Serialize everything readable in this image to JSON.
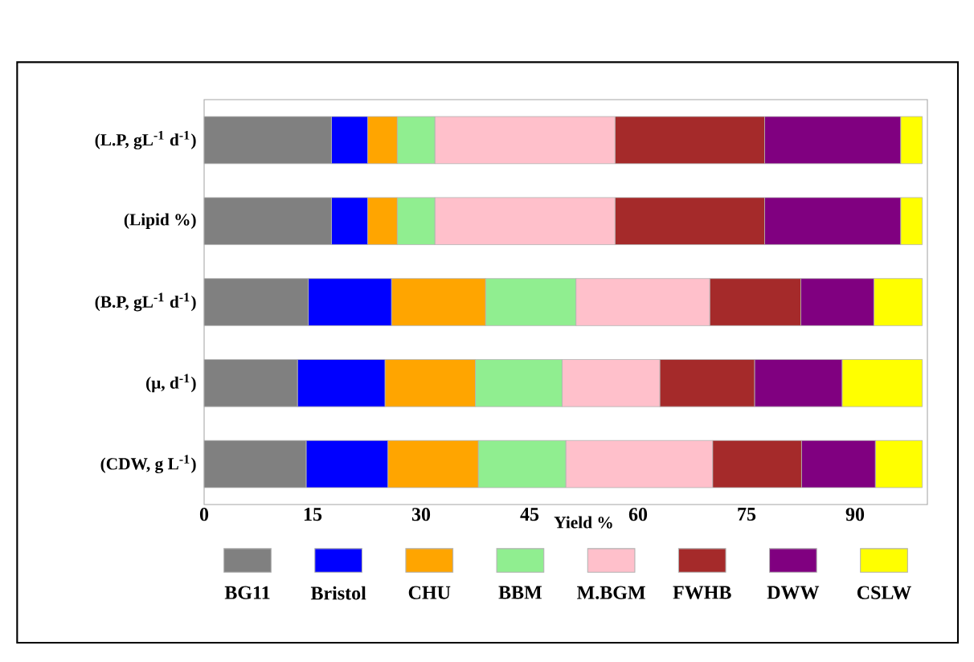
{
  "chart_data": {
    "type": "bar",
    "orientation": "horizontal",
    "stacked": true,
    "xlabel": "Yield %",
    "categories": [
      "(L.P, gL$^{-1}$ d$^{-1}$)",
      "(Lipid %)",
      "(B.P, gL$^{-1}$ d$^{-1}$)",
      "(μ, d$^{-1}$)",
      "(CDW, g L$^{-1}$)"
    ],
    "series": [
      {
        "name": "BG11",
        "color": "#808080",
        "values": [
          17.6,
          17.6,
          14.4,
          12.9,
          14.1
        ]
      },
      {
        "name": "Bristol",
        "color": "#0000ff",
        "values": [
          5.0,
          5.0,
          11.5,
          12.1,
          11.3
        ]
      },
      {
        "name": "CHU",
        "color": "#ffa500",
        "values": [
          4.1,
          4.1,
          13.0,
          12.5,
          12.5
        ]
      },
      {
        "name": "BBM",
        "color": "#90ee90",
        "values": [
          5.2,
          5.2,
          12.5,
          12.0,
          12.1
        ]
      },
      {
        "name": "M.BGM",
        "color": "#ffc0cb",
        "values": [
          24.9,
          24.9,
          18.5,
          13.5,
          20.3
        ]
      },
      {
        "name": "FWHB",
        "color": "#a52a2a",
        "values": [
          20.7,
          20.7,
          12.6,
          13.1,
          12.3
        ]
      },
      {
        "name": "DWW",
        "color": "#800080",
        "values": [
          18.8,
          18.8,
          10.1,
          12.1,
          10.2
        ]
      },
      {
        "name": "CSLW",
        "color": "#ffff00",
        "values": [
          3.0,
          3.0,
          6.7,
          11.1,
          6.5
        ]
      }
    ],
    "xlim": [
      0,
      100
    ],
    "xticks": [
      0,
      15,
      30,
      45,
      60,
      75,
      90
    ],
    "grid": false,
    "legend": "bottom"
  }
}
